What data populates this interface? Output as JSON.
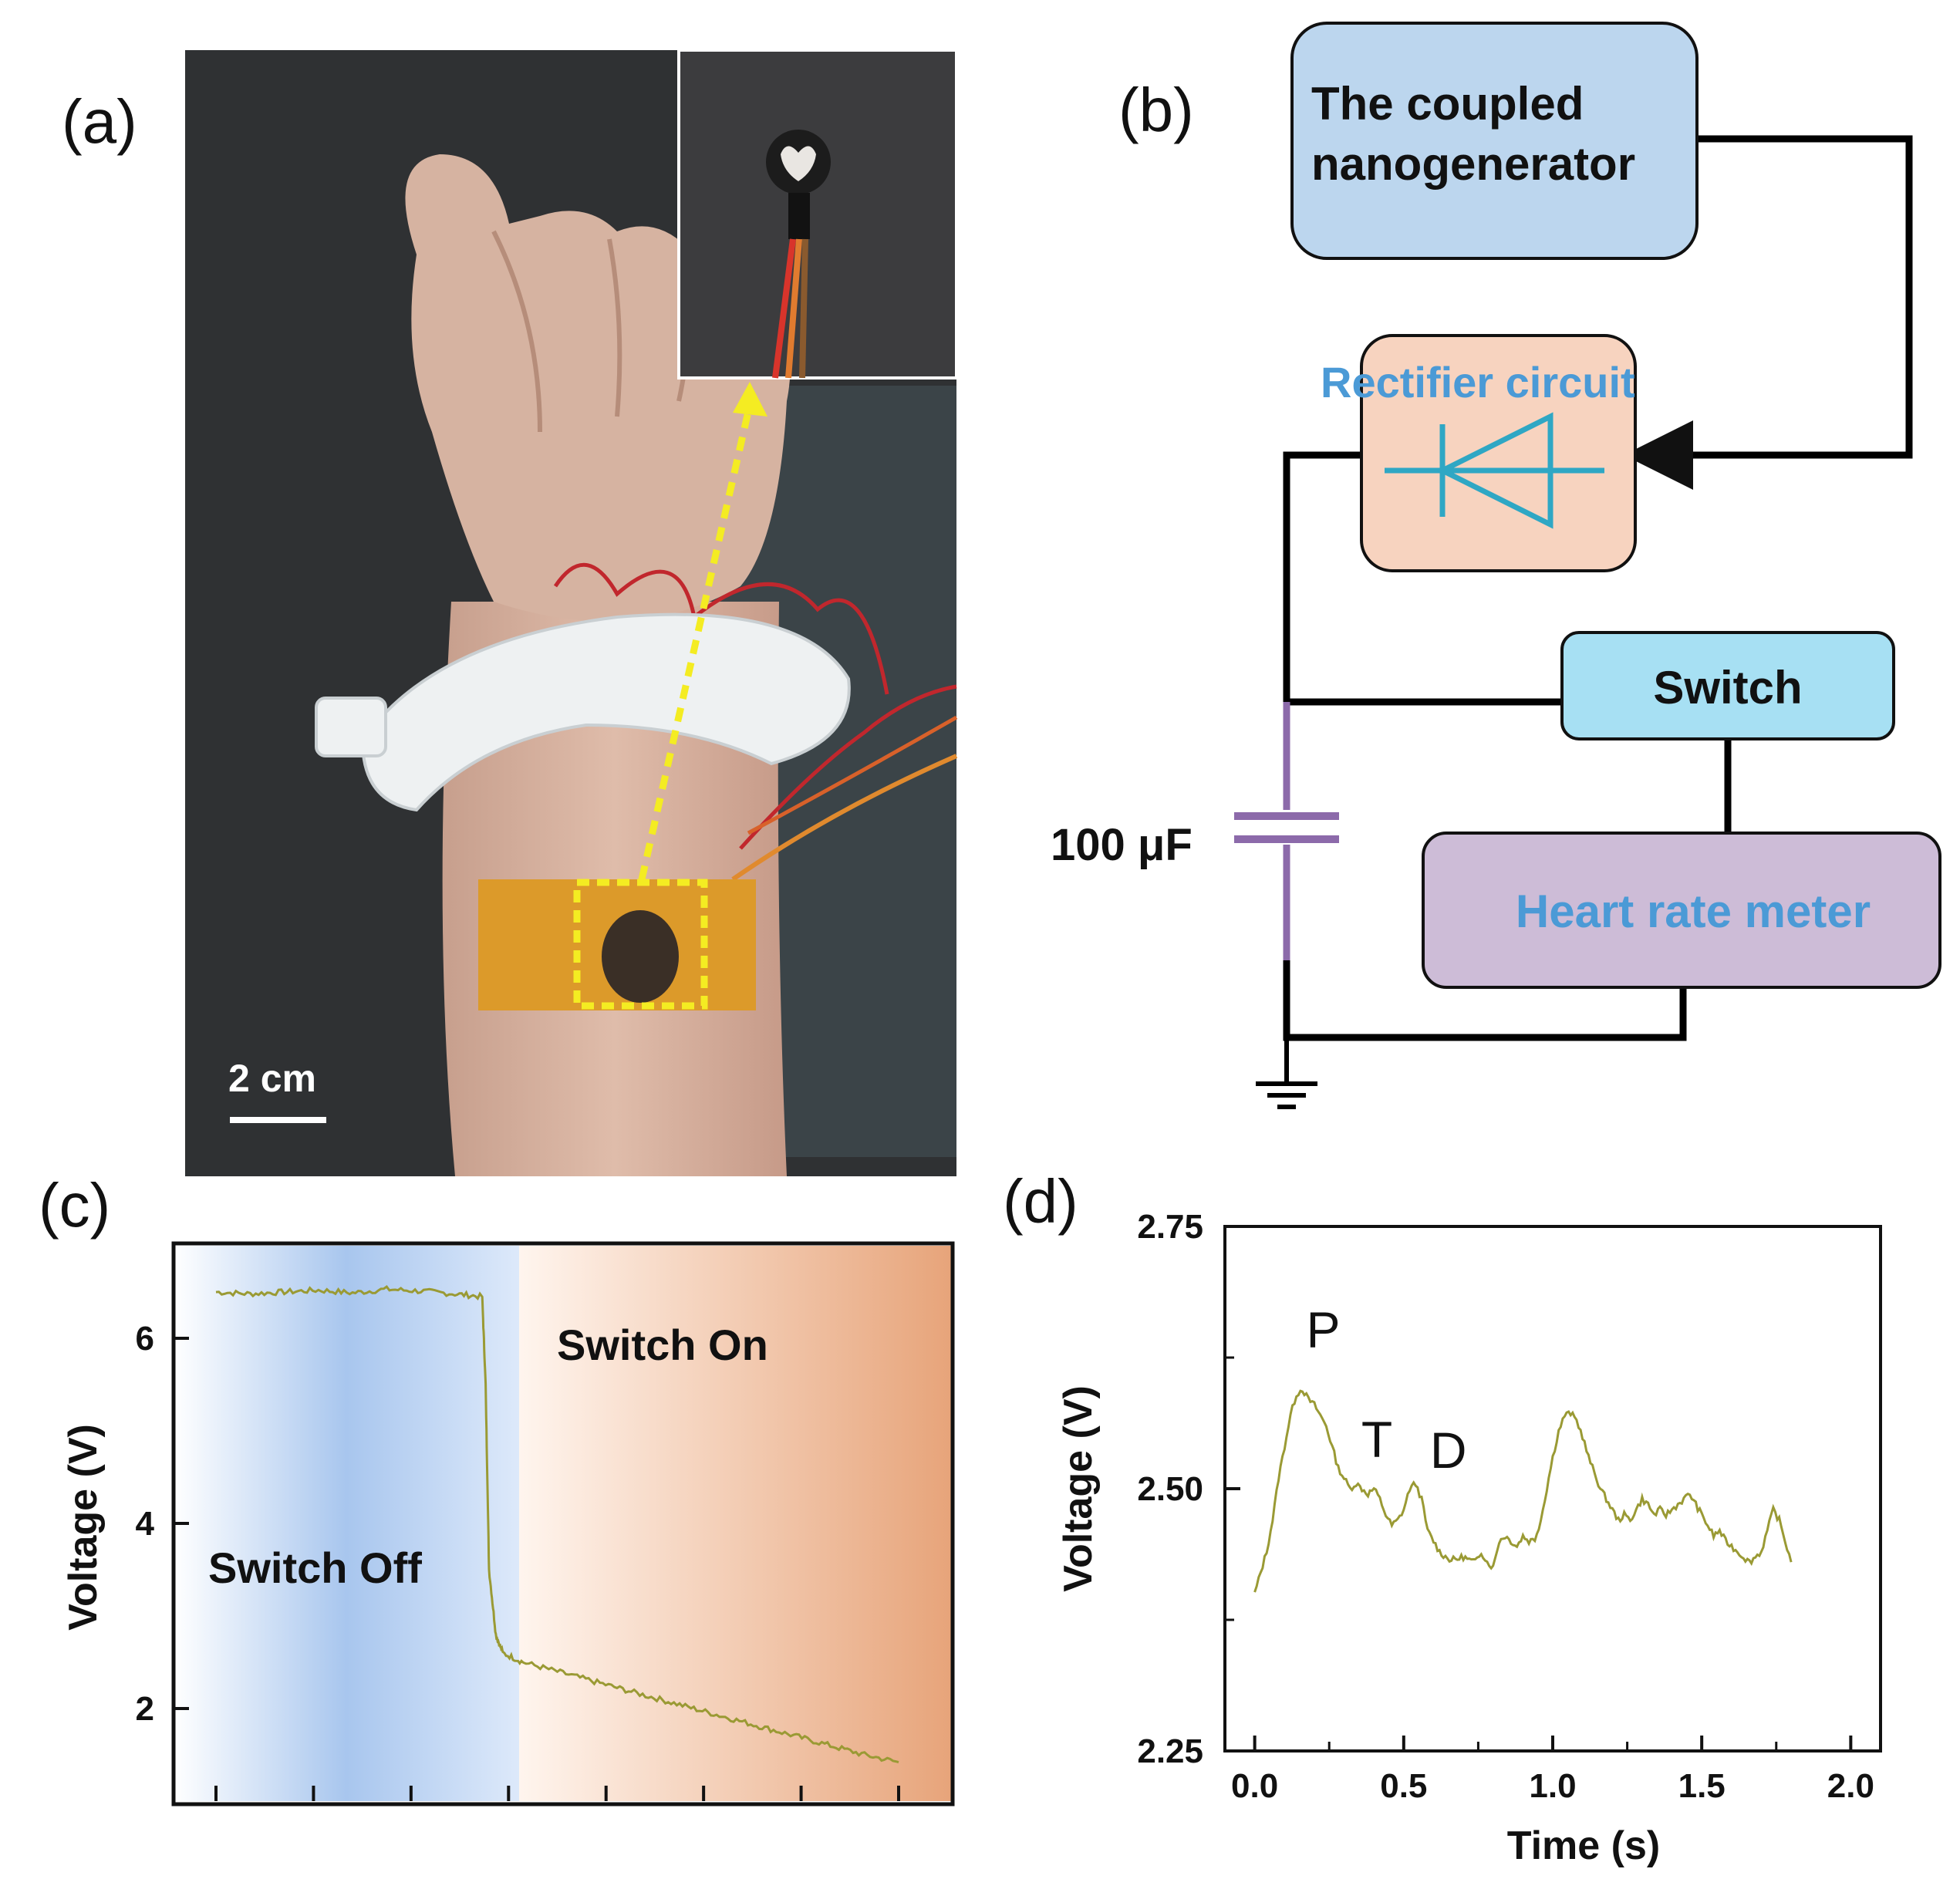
{
  "panels": {
    "a": {
      "letter": "(a)",
      "scale_bar_label": "2 cm"
    },
    "b": {
      "letter": "(b)",
      "nanogenerator_line1": "The coupled",
      "nanogenerator_line2": "nanogenerator",
      "rectifier_label": "Rectifier  circuit",
      "switch_label": "Switch",
      "heart_rate_label": "Heart rate meter",
      "capacitor_label": "100 μF",
      "colors": {
        "nanogenerator_fill": "#bcd6ee",
        "rectifier_fill": "#f7d3bf",
        "switch_fill": "#a7e0f3",
        "heart_rate_fill": "#cdbcd7",
        "blue_text": "#4b9ad6",
        "diode": "#2fa7c4",
        "capacitor": "#8c6aaa"
      }
    },
    "c": {
      "letter": "(c)",
      "switch_off_label": "Switch Off",
      "switch_on_label": "Switch On"
    },
    "d": {
      "letter": "(d)"
    }
  },
  "chart_data": [
    {
      "panel": "c",
      "type": "line",
      "title": "",
      "xlabel": "",
      "ylabel": "Voltage (V)",
      "ylim": [
        1.0,
        7.0
      ],
      "y_ticks": [
        2,
        4,
        6
      ],
      "x_tick_count": 8,
      "switch_time_fraction": 0.38,
      "regions": [
        {
          "name": "Switch Off",
          "color": "#9fc0ea"
        },
        {
          "name": "Switch On",
          "color": "#e7a67c"
        }
      ],
      "line_color": "#9a9a34",
      "series": [
        {
          "name": "voltage",
          "x": [
            0.0,
            0.05,
            0.1,
            0.15,
            0.2,
            0.25,
            0.3,
            0.35,
            0.39,
            0.395,
            0.4,
            0.41,
            0.42,
            0.45,
            0.5,
            0.55,
            0.6,
            0.65,
            0.7,
            0.75,
            0.8,
            0.85,
            0.9,
            0.95,
            1.0
          ],
          "y": [
            6.5,
            6.48,
            6.5,
            6.52,
            6.49,
            6.53,
            6.51,
            6.48,
            6.45,
            5.5,
            3.5,
            2.8,
            2.6,
            2.5,
            2.4,
            2.3,
            2.2,
            2.1,
            2.0,
            1.9,
            1.8,
            1.7,
            1.6,
            1.5,
            1.42
          ]
        }
      ]
    },
    {
      "panel": "d",
      "type": "line",
      "title": "",
      "xlabel": "Time (s)",
      "ylabel": "Voltage (V)",
      "xlim": [
        -0.1,
        2.1
      ],
      "ylim": [
        2.25,
        2.75
      ],
      "x_ticks": [
        "0.0",
        "0.5",
        "1.0",
        "1.5",
        "2.0"
      ],
      "x_tick_values": [
        0.0,
        0.5,
        1.0,
        1.5,
        2.0
      ],
      "y_ticks": [
        "2.25",
        "2.50",
        "2.75"
      ],
      "y_tick_values": [
        2.25,
        2.5,
        2.75
      ],
      "line_color": "#9a9a34",
      "annotations": [
        {
          "text": "P",
          "x": 0.23,
          "y": 2.635
        },
        {
          "text": "T",
          "x": 0.41,
          "y": 2.53
        },
        {
          "text": "D",
          "x": 0.65,
          "y": 2.52
        }
      ],
      "series": [
        {
          "name": "heart pulse",
          "x": [
            0.0,
            0.02,
            0.04,
            0.06,
            0.08,
            0.1,
            0.12,
            0.14,
            0.16,
            0.18,
            0.2,
            0.22,
            0.24,
            0.26,
            0.28,
            0.3,
            0.32,
            0.34,
            0.36,
            0.38,
            0.4,
            0.42,
            0.44,
            0.46,
            0.48,
            0.5,
            0.52,
            0.54,
            0.56,
            0.58,
            0.6,
            0.62,
            0.64,
            0.66,
            0.68,
            0.7,
            0.72,
            0.74,
            0.76,
            0.78,
            0.8,
            0.82,
            0.84,
            0.86,
            0.88,
            0.9,
            0.92,
            0.94,
            0.96,
            0.98,
            1.0,
            1.02,
            1.04,
            1.06,
            1.08,
            1.1,
            1.12,
            1.14,
            1.16,
            1.18,
            1.2,
            1.22,
            1.24,
            1.26,
            1.28,
            1.3,
            1.32,
            1.34,
            1.36,
            1.38,
            1.4,
            1.42,
            1.44,
            1.46,
            1.48,
            1.5,
            1.52,
            1.54,
            1.56,
            1.58,
            1.6,
            1.62,
            1.64,
            1.66,
            1.68,
            1.7,
            1.72,
            1.74,
            1.76,
            1.78,
            1.8
          ],
          "y": [
            2.4,
            2.42,
            2.44,
            2.47,
            2.51,
            2.54,
            2.57,
            2.59,
            2.595,
            2.585,
            2.58,
            2.57,
            2.56,
            2.54,
            2.52,
            2.51,
            2.5,
            2.505,
            2.5,
            2.495,
            2.5,
            2.49,
            2.475,
            2.465,
            2.47,
            2.48,
            2.5,
            2.505,
            2.49,
            2.46,
            2.45,
            2.44,
            2.435,
            2.432,
            2.433,
            2.435,
            2.432,
            2.43,
            2.44,
            2.43,
            2.425,
            2.45,
            2.455,
            2.45,
            2.445,
            2.455,
            2.45,
            2.452,
            2.47,
            2.5,
            2.53,
            2.555,
            2.57,
            2.572,
            2.565,
            2.55,
            2.53,
            2.515,
            2.5,
            2.49,
            2.48,
            2.47,
            2.475,
            2.47,
            2.48,
            2.49,
            2.485,
            2.475,
            2.48,
            2.475,
            2.48,
            2.485,
            2.49,
            2.495,
            2.485,
            2.475,
            2.465,
            2.455,
            2.46,
            2.45,
            2.445,
            2.44,
            2.435,
            2.43,
            2.435,
            2.44,
            2.46,
            2.48,
            2.47,
            2.45,
            2.43
          ]
        }
      ]
    }
  ]
}
